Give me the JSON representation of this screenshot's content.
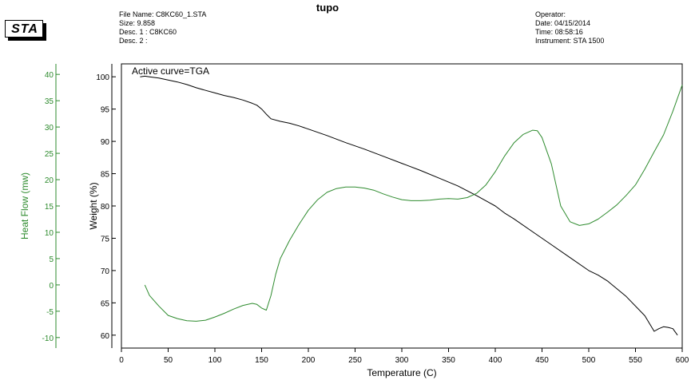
{
  "header": {
    "logo_text": "STA",
    "title": "tupo",
    "left_info": [
      "File Name: C8KC60_1.STA",
      "Size: 9.858",
      "Desc. 1 : C8KC60",
      "Desc. 2 :"
    ],
    "right_info": [
      "Operator:",
      "Date: 04/15/2014",
      "Time:  08:58:16",
      "Instrument: STA 1500"
    ]
  },
  "chart_data": {
    "type": "line",
    "active_curve_label": "Active curve=TGA",
    "xlabel": "Temperature (C)",
    "xlim": [
      0,
      600
    ],
    "xticks": [
      0,
      50,
      100,
      150,
      200,
      250,
      300,
      350,
      400,
      450,
      500,
      550,
      600
    ],
    "xtick_labels": [
      "0",
      "50",
      "100",
      "150",
      "200",
      "250",
      "300",
      "350",
      "400",
      "450",
      "500",
      "550",
      "600"
    ],
    "weight_axis": {
      "label": "Weight (%)",
      "range": [
        58,
        102
      ],
      "ticks": [
        60,
        65,
        70,
        75,
        80,
        85,
        90,
        95,
        100
      ],
      "tick_labels": [
        "60",
        "65",
        "70",
        "75",
        "80",
        "85",
        "90",
        "95",
        "100"
      ],
      "color": "#000000"
    },
    "heatflow_axis": {
      "label": "Heat Flow (mw)",
      "range": [
        -12,
        42
      ],
      "ticks": [
        -10,
        -5,
        0,
        5,
        10,
        15,
        20,
        25,
        30,
        35,
        40
      ],
      "tick_labels": [
        "-10",
        "-5",
        "0",
        "5",
        "10",
        "15",
        "20",
        "25",
        "30",
        "35",
        "40"
      ],
      "color": "#2e8b2e"
    },
    "series": [
      {
        "axis": "weight",
        "color": "#000000",
        "points": [
          [
            20,
            100
          ],
          [
            25,
            100.1
          ],
          [
            30,
            100
          ],
          [
            40,
            99.8
          ],
          [
            50,
            99.5
          ],
          [
            60,
            99.2
          ],
          [
            70,
            98.8
          ],
          [
            80,
            98.3
          ],
          [
            90,
            97.9
          ],
          [
            100,
            97.5
          ],
          [
            110,
            97.1
          ],
          [
            120,
            96.8
          ],
          [
            130,
            96.4
          ],
          [
            140,
            95.9
          ],
          [
            145,
            95.6
          ],
          [
            150,
            95
          ],
          [
            155,
            94.2
          ],
          [
            160,
            93.5
          ],
          [
            170,
            93.1
          ],
          [
            180,
            92.8
          ],
          [
            190,
            92.4
          ],
          [
            200,
            91.9
          ],
          [
            220,
            90.9
          ],
          [
            240,
            89.8
          ],
          [
            260,
            88.8
          ],
          [
            280,
            87.7
          ],
          [
            300,
            86.6
          ],
          [
            320,
            85.5
          ],
          [
            340,
            84.3
          ],
          [
            360,
            83.1
          ],
          [
            380,
            81.6
          ],
          [
            400,
            80
          ],
          [
            410,
            78.9
          ],
          [
            420,
            78
          ],
          [
            440,
            76
          ],
          [
            460,
            74
          ],
          [
            480,
            72
          ],
          [
            500,
            70
          ],
          [
            510,
            69.3
          ],
          [
            520,
            68.4
          ],
          [
            540,
            66
          ],
          [
            560,
            63
          ],
          [
            570,
            60.6
          ],
          [
            575,
            61
          ],
          [
            580,
            61.3
          ],
          [
            585,
            61.2
          ],
          [
            590,
            61
          ],
          [
            595,
            60
          ]
        ]
      },
      {
        "axis": "heatflow",
        "color": "#2e8b2e",
        "points": [
          [
            25,
            0
          ],
          [
            30,
            -2
          ],
          [
            40,
            -4
          ],
          [
            50,
            -5.8
          ],
          [
            60,
            -6.4
          ],
          [
            70,
            -6.8
          ],
          [
            80,
            -6.9
          ],
          [
            90,
            -6.7
          ],
          [
            100,
            -6.1
          ],
          [
            110,
            -5.4
          ],
          [
            120,
            -4.6
          ],
          [
            130,
            -3.9
          ],
          [
            140,
            -3.5
          ],
          [
            145,
            -3.7
          ],
          [
            150,
            -4.4
          ],
          [
            155,
            -4.8
          ],
          [
            160,
            -2
          ],
          [
            165,
            2
          ],
          [
            170,
            5
          ],
          [
            180,
            8.5
          ],
          [
            190,
            11.5
          ],
          [
            200,
            14.2
          ],
          [
            210,
            16.2
          ],
          [
            220,
            17.6
          ],
          [
            230,
            18.3
          ],
          [
            240,
            18.6
          ],
          [
            250,
            18.6
          ],
          [
            260,
            18.4
          ],
          [
            270,
            18
          ],
          [
            280,
            17.3
          ],
          [
            290,
            16.7
          ],
          [
            300,
            16.2
          ],
          [
            310,
            16
          ],
          [
            320,
            16
          ],
          [
            330,
            16.1
          ],
          [
            340,
            16.3
          ],
          [
            350,
            16.4
          ],
          [
            360,
            16.3
          ],
          [
            370,
            16.6
          ],
          [
            380,
            17.4
          ],
          [
            390,
            19
          ],
          [
            400,
            21.5
          ],
          [
            410,
            24.5
          ],
          [
            420,
            27
          ],
          [
            430,
            28.6
          ],
          [
            440,
            29.4
          ],
          [
            445,
            29.3
          ],
          [
            450,
            28
          ],
          [
            460,
            23
          ],
          [
            470,
            15
          ],
          [
            480,
            12
          ],
          [
            490,
            11.3
          ],
          [
            500,
            11.6
          ],
          [
            510,
            12.5
          ],
          [
            520,
            13.8
          ],
          [
            530,
            15.2
          ],
          [
            540,
            17
          ],
          [
            550,
            19
          ],
          [
            560,
            22
          ],
          [
            570,
            25.3
          ],
          [
            580,
            28.5
          ],
          [
            590,
            33
          ],
          [
            600,
            38
          ]
        ]
      }
    ]
  }
}
